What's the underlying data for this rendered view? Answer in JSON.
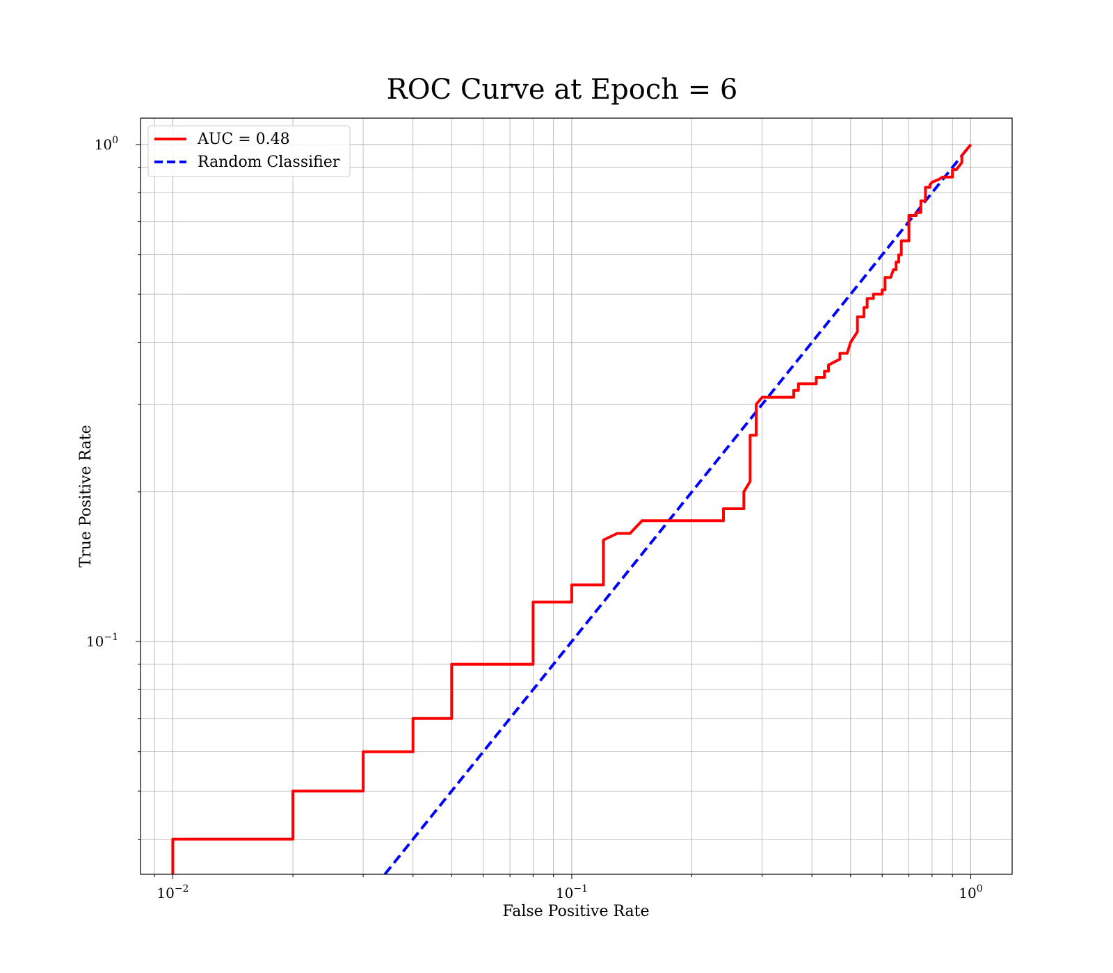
{
  "chart_data": {
    "type": "line",
    "title": "ROC Curve at Epoch = 6",
    "xlabel": "False Positive Rate",
    "ylabel": "True Positive Rate",
    "xscale": "log",
    "yscale": "log",
    "xlim": [
      0.0083,
      1.27
    ],
    "ylim": [
      0.034,
      1.13
    ],
    "grid": true,
    "legend_position": "top-left",
    "x_ticks": [
      {
        "value": 0.01,
        "base": "10",
        "exp": "−2"
      },
      {
        "value": 0.1,
        "base": "10",
        "exp": "−1"
      },
      {
        "value": 1,
        "base": "10",
        "exp": "0"
      }
    ],
    "y_ticks": [
      {
        "value": 0.1,
        "base": "10",
        "exp": "−1"
      },
      {
        "value": 1,
        "base": "10",
        "exp": "0"
      }
    ],
    "series": [
      {
        "name": "AUC = 0.48",
        "color": "#ff0000",
        "style": "solid",
        "x": [
          0.01,
          0.01,
          0.02,
          0.02,
          0.03,
          0.03,
          0.04,
          0.04,
          0.05,
          0.05,
          0.08,
          0.08,
          0.1,
          0.1,
          0.12,
          0.12,
          0.13,
          0.14,
          0.15,
          0.24,
          0.24,
          0.27,
          0.27,
          0.28,
          0.28,
          0.29,
          0.29,
          0.3,
          0.36,
          0.36,
          0.37,
          0.37,
          0.41,
          0.41,
          0.43,
          0.43,
          0.44,
          0.44,
          0.47,
          0.47,
          0.49,
          0.5,
          0.52,
          0.52,
          0.54,
          0.54,
          0.55,
          0.55,
          0.57,
          0.57,
          0.6,
          0.6,
          0.61,
          0.61,
          0.63,
          0.64,
          0.65,
          0.65,
          0.66,
          0.66,
          0.67,
          0.67,
          0.7,
          0.7,
          0.73,
          0.73,
          0.75,
          0.75,
          0.77,
          0.77,
          0.79,
          0.79,
          0.8,
          0.83,
          0.85,
          0.9,
          0.9,
          0.92,
          0.93,
          0.95,
          0.95,
          0.97,
          0.99,
          1.0
        ],
        "y": [
          0.034,
          0.04,
          0.04,
          0.05,
          0.05,
          0.06,
          0.06,
          0.07,
          0.07,
          0.09,
          0.09,
          0.12,
          0.12,
          0.13,
          0.13,
          0.16,
          0.165,
          0.165,
          0.175,
          0.175,
          0.185,
          0.185,
          0.2,
          0.21,
          0.26,
          0.26,
          0.3,
          0.31,
          0.31,
          0.32,
          0.32,
          0.33,
          0.33,
          0.34,
          0.34,
          0.35,
          0.35,
          0.36,
          0.37,
          0.38,
          0.38,
          0.4,
          0.42,
          0.45,
          0.45,
          0.47,
          0.47,
          0.49,
          0.49,
          0.5,
          0.5,
          0.51,
          0.51,
          0.54,
          0.54,
          0.56,
          0.56,
          0.58,
          0.58,
          0.6,
          0.6,
          0.64,
          0.64,
          0.72,
          0.72,
          0.73,
          0.73,
          0.77,
          0.77,
          0.82,
          0.82,
          0.83,
          0.84,
          0.85,
          0.86,
          0.86,
          0.89,
          0.89,
          0.9,
          0.92,
          0.95,
          0.97,
          0.99,
          1.0
        ]
      },
      {
        "name": "Random Classifier",
        "color": "#0000ff",
        "style": "dashed",
        "x": [
          0.034,
          1.0
        ],
        "y": [
          0.034,
          1.0
        ]
      }
    ]
  }
}
